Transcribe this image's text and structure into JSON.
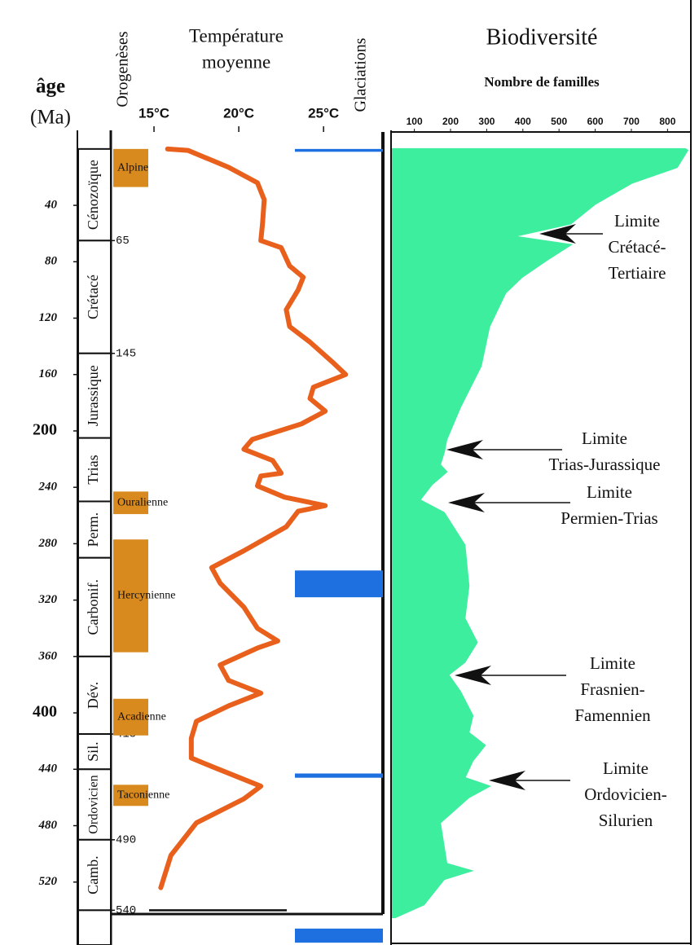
{
  "age_axis": {
    "title": "âge",
    "unit": "(Ma)",
    "ylim": [
      -8,
      545
    ],
    "yticks": [
      40,
      80,
      120,
      160,
      200,
      240,
      280,
      320,
      360,
      400,
      440,
      480,
      520
    ],
    "boundary_ticks": [
      65,
      145,
      415,
      490,
      540
    ]
  },
  "periods": [
    {
      "name": "Cénozoïque",
      "start": 0,
      "end": 65
    },
    {
      "name": "Crétacé",
      "start": 65,
      "end": 145
    },
    {
      "name": "Jurassique",
      "start": 145,
      "end": 205
    },
    {
      "name": "Trias",
      "start": 205,
      "end": 250
    },
    {
      "name": "Perm.",
      "start": 250,
      "end": 290
    },
    {
      "name": "Carbonif.",
      "start": 290,
      "end": 360
    },
    {
      "name": "Dév.",
      "start": 360,
      "end": 415
    },
    {
      "name": "Sil.",
      "start": 415,
      "end": 440
    },
    {
      "name": "Ordovicien",
      "start": 440,
      "end": 490
    },
    {
      "name": "Camb.",
      "start": 490,
      "end": 540
    }
  ],
  "orogenies": {
    "title": "Orogenèses",
    "color": "#d98a1e",
    "items": [
      {
        "name": "Alpine",
        "start": 0,
        "end": 27
      },
      {
        "name": "Ouralienne",
        "start": 243,
        "end": 259
      },
      {
        "name": "Hercynienne",
        "start": 277,
        "end": 357
      },
      {
        "name": "Acadienne",
        "start": 390,
        "end": 416
      },
      {
        "name": "Taconienne",
        "start": 451,
        "end": 466
      }
    ]
  },
  "glaciations": {
    "title": "Glaciations",
    "color": "#1e6fe0",
    "items": [
      {
        "start": 0,
        "end": 2
      },
      {
        "start": 299,
        "end": 318
      },
      {
        "start": 443,
        "end": 446
      },
      {
        "start": 553,
        "end": 563
      }
    ]
  },
  "chart_data": [
    {
      "type": "line",
      "title": "Température",
      "subtitle": "moyenne",
      "color": "#e8601c",
      "xlim": [
        12.5,
        28.5
      ],
      "xticks": [
        {
          "value": 15,
          "label": "15°C"
        },
        {
          "value": 20,
          "label": "20°C"
        },
        {
          "value": 25,
          "label": "25°C"
        }
      ],
      "ages": [
        0,
        1,
        13,
        24,
        36,
        53,
        65,
        70,
        83,
        91,
        100,
        114,
        126,
        137,
        152,
        160,
        169,
        177,
        186,
        195,
        206,
        213,
        221,
        230,
        232,
        239,
        247,
        253,
        257,
        268,
        285,
        297,
        308,
        325,
        340,
        349,
        354,
        366,
        377,
        386,
        395,
        406,
        418,
        432,
        438,
        452,
        461,
        478,
        501,
        524
      ],
      "values": [
        15.8,
        17,
        19.4,
        21.1,
        21.5,
        21.4,
        21.3,
        22.5,
        23,
        23.8,
        23.5,
        22.8,
        23,
        24.2,
        25.6,
        26.3,
        24.4,
        24.2,
        25.1,
        23.7,
        20.8,
        20.3,
        22,
        22.5,
        21.3,
        21.1,
        22.7,
        25.1,
        23.5,
        22.8,
        20.3,
        18.4,
        18.9,
        20.3,
        21.1,
        22.3,
        21.1,
        18.9,
        19.4,
        21.3,
        19.4,
        17.5,
        17.2,
        17.2,
        18.4,
        21.3,
        20.3,
        17.5,
        16,
        15.4
      ]
    },
    {
      "type": "area",
      "title": "Biodiversité",
      "subtitle": "Nombre de familles",
      "color": "#3cee9e",
      "xlim": [
        40,
        860
      ],
      "xticks": [
        100,
        200,
        300,
        400,
        500,
        600,
        700,
        800
      ],
      "ages": [
        0,
        1,
        13,
        24,
        39,
        53,
        62,
        68,
        79,
        91,
        102,
        126,
        154,
        183,
        206,
        215,
        224,
        229,
        238,
        249,
        258,
        281,
        310,
        333,
        350,
        364,
        373,
        385,
        402,
        414,
        423,
        434,
        446,
        452,
        460,
        478,
        507,
        512,
        518,
        536,
        545
      ],
      "values": [
        849,
        855,
        826,
        702,
        600,
        532,
        374,
        532,
        465,
        397,
        352,
        307,
        284,
        227,
        189,
        182,
        171,
        189,
        148,
        115,
        182,
        239,
        250,
        239,
        273,
        239,
        194,
        227,
        261,
        250,
        295,
        261,
        239,
        307,
        250,
        171,
        189,
        257,
        182,
        126,
        47
      ],
      "annotations": [
        {
          "lines": [
            "Limite",
            "Crétacé-",
            "Tertiaire"
          ]
        },
        {
          "lines": [
            "Limite",
            "Trias-Jurassique"
          ]
        },
        {
          "lines": [
            "Limite",
            "Permien-Trias"
          ]
        },
        {
          "lines": [
            "Limite",
            "Frasnien-",
            "Famennien"
          ]
        },
        {
          "lines": [
            "Limite",
            "Ordovicien-",
            "Silurien"
          ]
        }
      ]
    }
  ]
}
